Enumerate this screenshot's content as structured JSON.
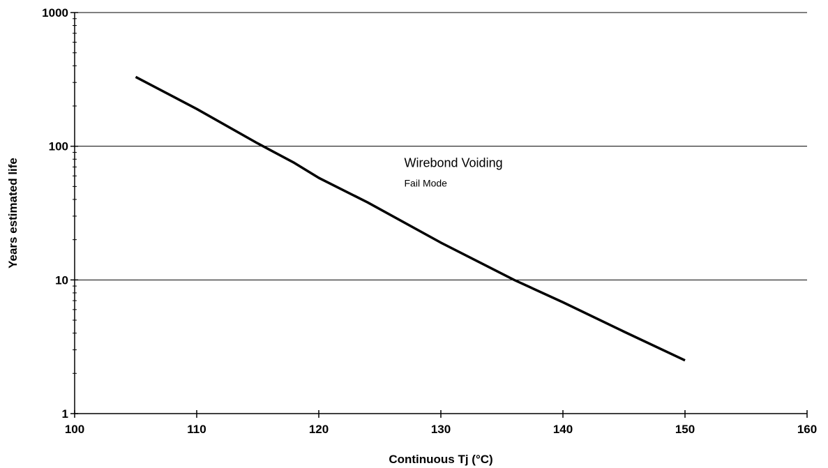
{
  "chart_data": {
    "type": "line",
    "title": "",
    "xlabel": "Continuous Tj (°C)",
    "ylabel": "Years estimated life",
    "xlim": [
      100,
      160
    ],
    "ylim": [
      1,
      1000
    ],
    "yscale": "log",
    "x_ticks": [
      100,
      110,
      120,
      130,
      140,
      150,
      160
    ],
    "x_tick_labels": [
      "100",
      "110",
      "120",
      "130",
      "140",
      "150",
      "160"
    ],
    "y_ticks": [
      1,
      10,
      100,
      1000
    ],
    "y_tick_labels": [
      "1",
      "10",
      "100",
      "1000"
    ],
    "grid": "horizontal major lines",
    "series": [
      {
        "color": "#000000",
        "x": [
          105,
          110,
          115,
          118,
          120,
          124,
          130,
          136,
          140,
          145,
          150
        ],
        "y": [
          330,
          190,
          105,
          75,
          58,
          38,
          19,
          10,
          6.8,
          4.1,
          2.5
        ]
      }
    ],
    "annotations": [
      {
        "text": "Wirebond Voiding",
        "x": 127,
        "y": 70
      },
      {
        "text": "Fail Mode",
        "x": 127,
        "y": 50
      }
    ]
  }
}
